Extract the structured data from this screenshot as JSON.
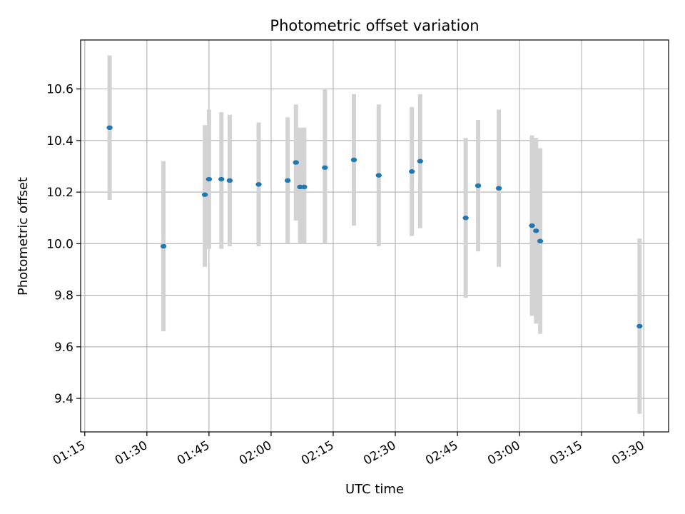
{
  "chart_data": {
    "type": "scatter",
    "title": "Photometric offset variation",
    "xlabel": "UTC time",
    "ylabel": "Photometric offset",
    "x_tick_labels": [
      "01:15",
      "01:30",
      "01:45",
      "02:00",
      "02:15",
      "02:30",
      "02:45",
      "03:00",
      "03:15",
      "03:30"
    ],
    "y_ticks": [
      9.4,
      9.6,
      9.8,
      10.0,
      10.2,
      10.4,
      10.6
    ],
    "y_tick_labels": [
      "9.4",
      "9.6",
      "9.8",
      "10.0",
      "10.2",
      "10.4",
      "10.6"
    ],
    "xlim": [
      "01:14",
      "03:36"
    ],
    "ylim": [
      9.27,
      10.79
    ],
    "grid": true,
    "point_color": "#1f77b4",
    "errorbar_color": "#d3d3d3",
    "points": [
      {
        "x": "01:21",
        "y": 10.45,
        "ymin": 10.17,
        "ymax": 10.73
      },
      {
        "x": "01:34",
        "y": 9.99,
        "ymin": 9.66,
        "ymax": 10.32
      },
      {
        "x": "01:44",
        "y": 10.19,
        "ymin": 9.91,
        "ymax": 10.46
      },
      {
        "x": "01:45",
        "y": 10.25,
        "ymin": 9.98,
        "ymax": 10.52
      },
      {
        "x": "01:48",
        "y": 10.25,
        "ymin": 9.98,
        "ymax": 10.51
      },
      {
        "x": "01:50",
        "y": 10.245,
        "ymin": 9.99,
        "ymax": 10.5
      },
      {
        "x": "01:57",
        "y": 10.23,
        "ymin": 9.99,
        "ymax": 10.47
      },
      {
        "x": "02:04",
        "y": 10.245,
        "ymin": 10.0,
        "ymax": 10.49
      },
      {
        "x": "02:06",
        "y": 10.315,
        "ymin": 10.09,
        "ymax": 10.54
      },
      {
        "x": "02:07",
        "y": 10.22,
        "ymin": 10.0,
        "ymax": 10.45
      },
      {
        "x": "02:08",
        "y": 10.22,
        "ymin": 10.0,
        "ymax": 10.45
      },
      {
        "x": "02:13",
        "y": 10.295,
        "ymin": 10.0,
        "ymax": 10.6
      },
      {
        "x": "02:20",
        "y": 10.325,
        "ymin": 10.07,
        "ymax": 10.58
      },
      {
        "x": "02:26",
        "y": 10.265,
        "ymin": 9.99,
        "ymax": 10.54
      },
      {
        "x": "02:34",
        "y": 10.28,
        "ymin": 10.03,
        "ymax": 10.53
      },
      {
        "x": "02:36",
        "y": 10.32,
        "ymin": 10.06,
        "ymax": 10.58
      },
      {
        "x": "02:47",
        "y": 10.1,
        "ymin": 9.79,
        "ymax": 10.41
      },
      {
        "x": "02:50",
        "y": 10.225,
        "ymin": 9.97,
        "ymax": 10.48
      },
      {
        "x": "02:55",
        "y": 10.215,
        "ymin": 9.91,
        "ymax": 10.52
      },
      {
        "x": "03:03",
        "y": 10.07,
        "ymin": 9.72,
        "ymax": 10.42
      },
      {
        "x": "03:04",
        "y": 10.05,
        "ymin": 9.69,
        "ymax": 10.41
      },
      {
        "x": "03:05",
        "y": 10.01,
        "ymin": 9.65,
        "ymax": 10.37
      },
      {
        "x": "03:29",
        "y": 9.68,
        "ymin": 9.34,
        "ymax": 10.02
      }
    ]
  }
}
